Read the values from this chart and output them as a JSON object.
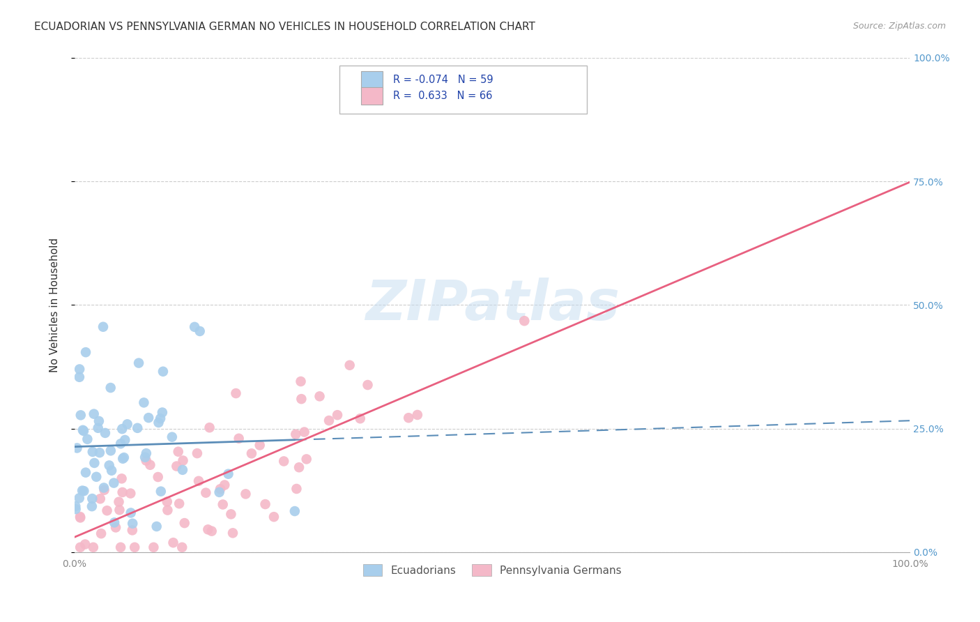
{
  "title": "ECUADORIAN VS PENNSYLVANIA GERMAN NO VEHICLES IN HOUSEHOLD CORRELATION CHART",
  "source": "Source: ZipAtlas.com",
  "ylabel": "No Vehicles in Household",
  "ytick_vals": [
    0.0,
    0.25,
    0.5,
    0.75,
    1.0
  ],
  "ytick_labels": [
    "0.0%",
    "25.0%",
    "50.0%",
    "75.0%",
    "100.0%"
  ],
  "xtick_vals": [
    0.0,
    1.0
  ],
  "xtick_labels": [
    "0.0%",
    "100.0%"
  ],
  "watermark": "ZIPatlas",
  "r1": -0.074,
  "n1": 59,
  "r2": 0.633,
  "n2": 66,
  "color_blue": "#A8CEEC",
  "color_pink": "#F4B8C8",
  "line_blue_color": "#5B8DB8",
  "line_pink_color": "#E86080",
  "background": "#FFFFFF",
  "grid_color": "#CCCCCC",
  "text_color": "#333333",
  "axis_label_color": "#5599CC",
  "blue_seed": 10,
  "pink_seed": 20
}
